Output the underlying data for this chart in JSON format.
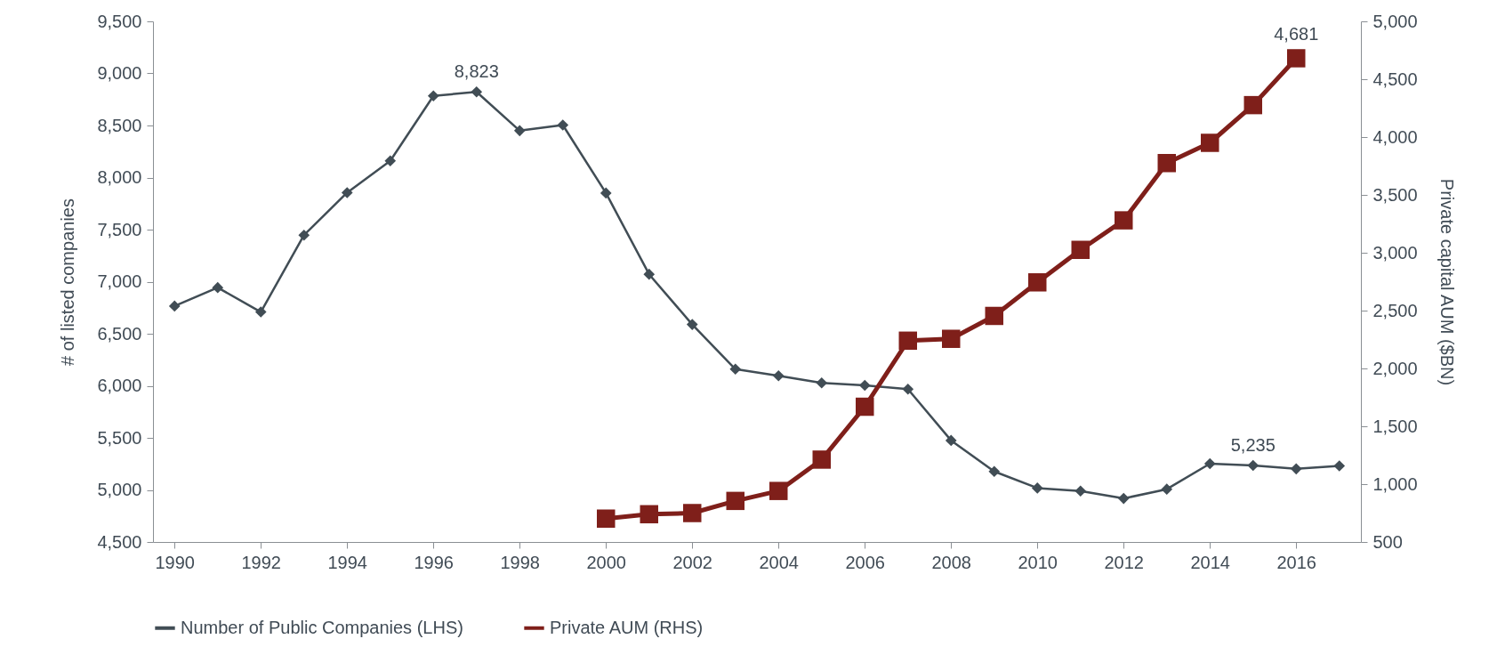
{
  "chart_data": {
    "type": "line",
    "xlabel": null,
    "ylabel": "# of listed companies",
    "y2label": "Private capital AUM ($BN)",
    "x": [
      1990,
      1991,
      1992,
      1993,
      1994,
      1995,
      1996,
      1997,
      1998,
      1999,
      2000,
      2001,
      2002,
      2003,
      2004,
      2005,
      2006,
      2007,
      2008,
      2009,
      2010,
      2011,
      2012,
      2013,
      2014,
      2015,
      2016,
      2017
    ],
    "xlim": [
      1989.5,
      2017.5
    ],
    "xticks": [
      1990,
      1992,
      1994,
      1996,
      1998,
      2000,
      2002,
      2004,
      2006,
      2008,
      2010,
      2012,
      2014,
      2016
    ],
    "ylim": [
      4500,
      9500
    ],
    "yticks": [
      {
        "value": 4500,
        "label": "4,500"
      },
      {
        "value": 5000,
        "label": "5,000"
      },
      {
        "value": 5500,
        "label": "5,500"
      },
      {
        "value": 6000,
        "label": "6,000"
      },
      {
        "value": 6500,
        "label": "6,500"
      },
      {
        "value": 7000,
        "label": "7,000"
      },
      {
        "value": 7500,
        "label": "7,500"
      },
      {
        "value": 8000,
        "label": "8,000"
      },
      {
        "value": 8500,
        "label": "8,500"
      },
      {
        "value": 9000,
        "label": "9,000"
      },
      {
        "value": 9500,
        "label": "9,500"
      }
    ],
    "y2lim": [
      500,
      5000
    ],
    "y2ticks": [
      {
        "value": 500,
        "label": "500"
      },
      {
        "value": 1000,
        "label": "1,000"
      },
      {
        "value": 1500,
        "label": "1,500"
      },
      {
        "value": 2000,
        "label": "2,000"
      },
      {
        "value": 2500,
        "label": "2,500"
      },
      {
        "value": 3000,
        "label": "3,000"
      },
      {
        "value": 3500,
        "label": "3,500"
      },
      {
        "value": 4000,
        "label": "4,000"
      },
      {
        "value": 4500,
        "label": "4,500"
      },
      {
        "value": 5000,
        "label": "5,000"
      }
    ],
    "series": [
      {
        "name": "Number of Public Companies (LHS)",
        "color": "#414d55",
        "marker": "diamond",
        "values": [
          6766,
          6943,
          6709,
          7447,
          7855,
          8160,
          8784,
          8823,
          8450,
          8504,
          7851,
          7071,
          6589,
          6160,
          6096,
          6028,
          6004,
          5968,
          5475,
          5177,
          5018,
          4989,
          4918,
          5007,
          5252,
          5235,
          5202,
          5231
        ],
        "value_labels": [
          null,
          null,
          null,
          null,
          null,
          null,
          null,
          "8,823",
          null,
          null,
          null,
          null,
          null,
          null,
          null,
          null,
          null,
          null,
          null,
          null,
          null,
          null,
          null,
          null,
          null,
          "5,235",
          null,
          null
        ]
      },
      {
        "name": "Private AUM (RHS)",
        "color": "#7f1f1a",
        "marker": "square",
        "axis": "y2",
        "values": [
          null,
          null,
          null,
          null,
          null,
          null,
          null,
          null,
          null,
          null,
          702,
          740,
          750,
          855,
          941,
          1212,
          1669,
          2240,
          2256,
          2454,
          2744,
          3025,
          3280,
          3775,
          3950,
          4276,
          4681,
          null
        ],
        "value_labels": [
          null,
          null,
          null,
          null,
          null,
          null,
          null,
          null,
          null,
          null,
          null,
          null,
          null,
          null,
          null,
          null,
          null,
          null,
          null,
          null,
          null,
          null,
          null,
          null,
          null,
          null,
          "4,681",
          null
        ]
      }
    ],
    "grid": false,
    "legend": "bottom"
  }
}
